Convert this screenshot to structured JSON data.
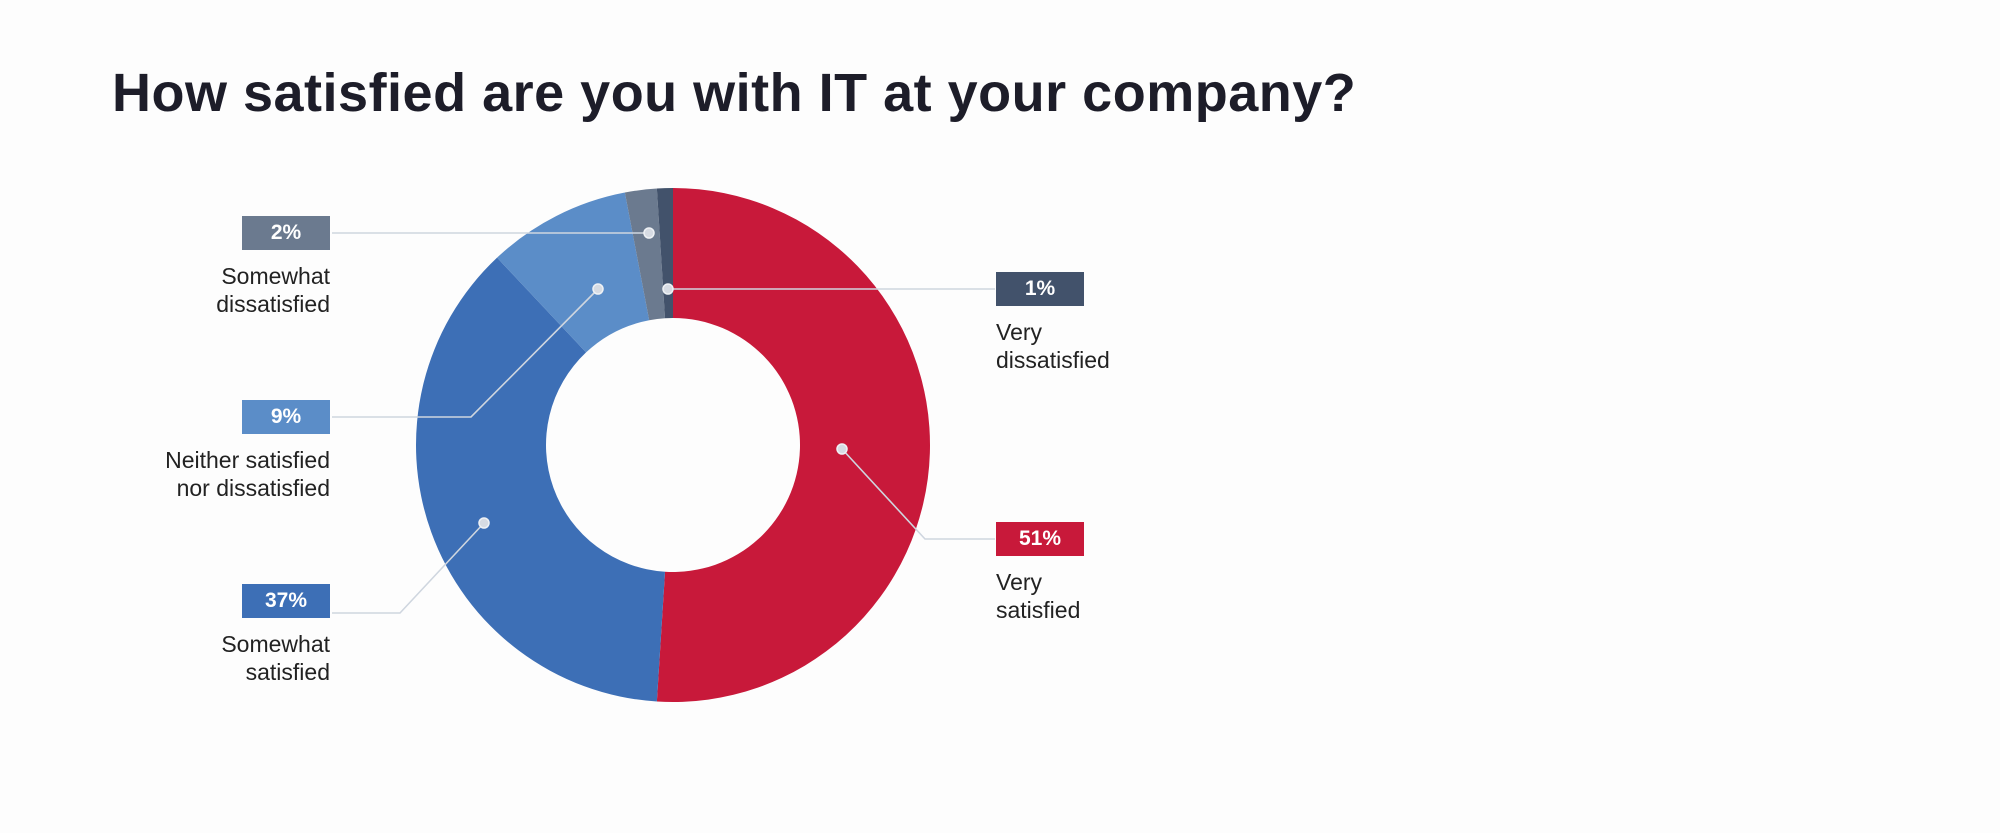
{
  "title": "How satisfied are you with IT at your company?",
  "labels": {
    "very_satisfied": {
      "pct": "51%",
      "line1": "Very",
      "line2": "satisfied",
      "color": "#c8193a"
    },
    "somewhat_satisfied": {
      "pct": "37%",
      "line1": "Somewhat",
      "line2": "satisfied",
      "color": "#3d6fb6"
    },
    "neither": {
      "pct": "9%",
      "line1": "Neither satisfied",
      "line2": "nor dissatisfied",
      "color": "#5b8dc8"
    },
    "somewhat_dissatisfied": {
      "pct": "2%",
      "line1": "Somewhat",
      "line2": "dissatisfied",
      "color": "#6b7a8f"
    },
    "very_dissatisfied": {
      "pct": "1%",
      "line1": "Very",
      "line2": "dissatisfied",
      "color": "#42526b"
    }
  },
  "chart_data": {
    "type": "pie",
    "variant": "donut",
    "title": "How satisfied are you with IT at your company?",
    "categories": [
      "Very satisfied",
      "Somewhat satisfied",
      "Neither satisfied nor dissatisfied",
      "Somewhat dissatisfied",
      "Very dissatisfied"
    ],
    "values": [
      51,
      37,
      9,
      2,
      1
    ],
    "unit": "%",
    "colors": [
      "#c8193a",
      "#3d6fb6",
      "#5b8dc8",
      "#6b7a8f",
      "#42526b"
    ],
    "start_angle": "12 o'clock",
    "direction": "clockwise",
    "legend": "callout labels with leader lines"
  }
}
